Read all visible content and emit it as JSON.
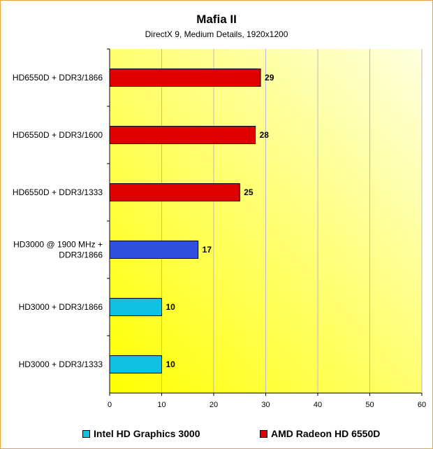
{
  "chart_data": {
    "type": "bar",
    "orientation": "horizontal",
    "title": "Mafia II",
    "subtitle": "DirectX 9, Medium Details, 1920x1200",
    "categories": [
      [
        "HD6550D + DDR3/1866"
      ],
      [
        "HD6550D + DDR3/1600"
      ],
      [
        "HD6550D + DDR3/1333"
      ],
      [
        "HD3000 @ 1900 MHz +",
        "DDR3/1866"
      ],
      [
        "HD3000 + DDR3/1866"
      ],
      [
        "HD3000 + DDR3/1333"
      ]
    ],
    "values": [
      29,
      28,
      25,
      17,
      10,
      10
    ],
    "bar_colors": [
      "#e00000",
      "#e00000",
      "#e00000",
      "#3050e0",
      "#10c0e0",
      "#10c0e0"
    ],
    "xlim": [
      0,
      60
    ],
    "xticks": [
      0,
      10,
      20,
      30,
      40,
      50,
      60
    ],
    "grid": true,
    "legend_position": "bottom",
    "legend": [
      {
        "name": "Intel HD Graphics 3000",
        "color": "#10c0e0"
      },
      {
        "name": "AMD Radeon HD 6550D",
        "color": "#e00000"
      }
    ],
    "background_colors": [
      "#ffff00",
      "#ffffe0"
    ]
  }
}
